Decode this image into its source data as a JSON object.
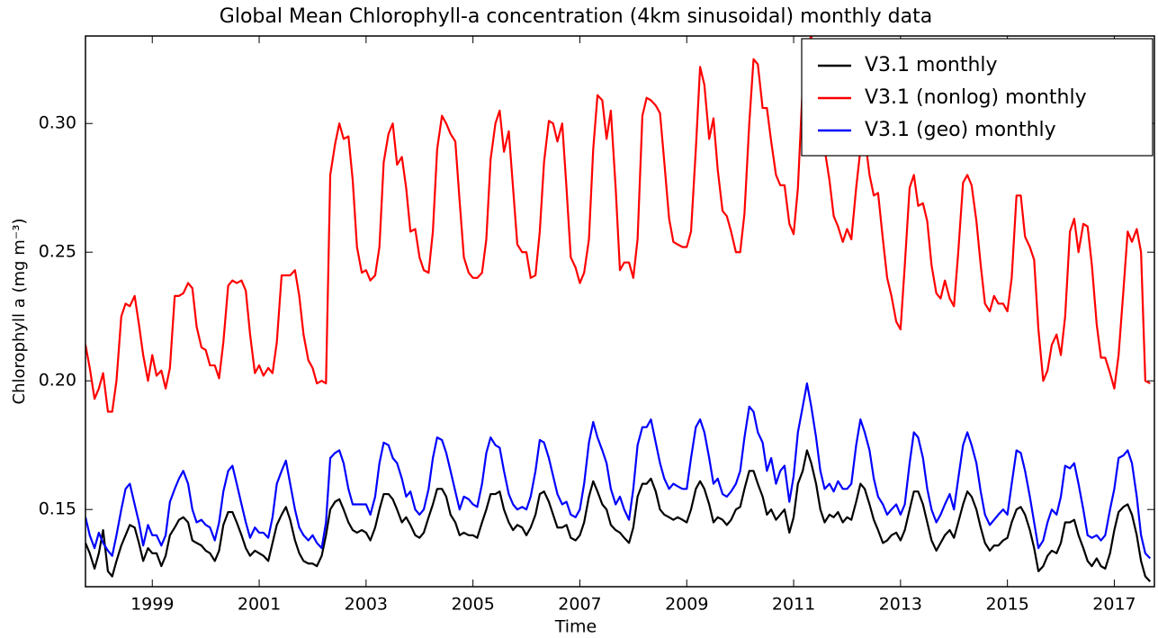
{
  "chart_data": {
    "type": "line",
    "title": "Global Mean Chlorophyll-a concentration (4km sinusoidal) monthly data",
    "xlabel": "Time",
    "ylabel": "Chlorophyll a (mg m⁻³)",
    "xlim": [
      1997.75,
      2017.75
    ],
    "ylim": [
      0.12,
      0.334
    ],
    "xticks": [
      1999,
      2001,
      2003,
      2005,
      2007,
      2009,
      2011,
      2013,
      2015,
      2017
    ],
    "yticks": [
      0.15,
      {
        "value": 0.2,
        "label": "0.20"
      },
      0.25,
      {
        "value": 0.3,
        "label": "0.30"
      }
    ],
    "legend": "upper right",
    "x": [
      1997.75,
      1997.83,
      1997.92,
      1998.0,
      1998.08,
      1998.17,
      1998.25,
      1998.33,
      1998.42,
      1998.5,
      1998.58,
      1998.67,
      1998.75,
      1998.83,
      1998.92,
      1999.0,
      1999.08,
      1999.17,
      1999.25,
      1999.33,
      1999.42,
      1999.5,
      1999.58,
      1999.67,
      1999.75,
      1999.83,
      1999.92,
      2000.0,
      2000.08,
      2000.17,
      2000.25,
      2000.33,
      2000.42,
      2000.5,
      2000.58,
      2000.67,
      2000.75,
      2000.83,
      2000.92,
      2001.0,
      2001.08,
      2001.17,
      2001.25,
      2001.33,
      2001.42,
      2001.5,
      2001.58,
      2001.67,
      2001.75,
      2001.83,
      2001.92,
      2002.0,
      2002.08,
      2002.17,
      2002.25,
      2002.33,
      2002.42,
      2002.5,
      2002.58,
      2002.67,
      2002.75,
      2002.83,
      2002.92,
      2003.0,
      2003.08,
      2003.17,
      2003.25,
      2003.33,
      2003.42,
      2003.5,
      2003.58,
      2003.67,
      2003.75,
      2003.83,
      2003.92,
      2004.0,
      2004.08,
      2004.17,
      2004.25,
      2004.33,
      2004.42,
      2004.5,
      2004.58,
      2004.67,
      2004.75,
      2004.83,
      2004.92,
      2005.0,
      2005.08,
      2005.17,
      2005.25,
      2005.33,
      2005.42,
      2005.5,
      2005.58,
      2005.67,
      2005.75,
      2005.83,
      2005.92,
      2006.0,
      2006.08,
      2006.17,
      2006.25,
      2006.33,
      2006.42,
      2006.5,
      2006.58,
      2006.67,
      2006.75,
      2006.83,
      2006.92,
      2007.0,
      2007.08,
      2007.17,
      2007.25,
      2007.33,
      2007.42,
      2007.5,
      2007.58,
      2007.67,
      2007.75,
      2007.83,
      2007.92,
      2008.0,
      2008.08,
      2008.17,
      2008.25,
      2008.33,
      2008.42,
      2008.5,
      2008.58,
      2008.67,
      2008.75,
      2008.83,
      2008.92,
      2009.0,
      2009.08,
      2009.17,
      2009.25,
      2009.33,
      2009.42,
      2009.5,
      2009.58,
      2009.67,
      2009.75,
      2009.83,
      2009.92,
      2010.0,
      2010.08,
      2010.17,
      2010.25,
      2010.33,
      2010.42,
      2010.5,
      2010.58,
      2010.67,
      2010.75,
      2010.83,
      2010.92,
      2011.0,
      2011.08,
      2011.17,
      2011.25,
      2011.33,
      2011.42,
      2011.5,
      2011.58,
      2011.67,
      2011.75,
      2011.83,
      2011.92,
      2012.0,
      2012.08,
      2012.17,
      2012.25,
      2012.33,
      2012.42,
      2012.5,
      2012.58,
      2012.67,
      2012.75,
      2012.83,
      2012.92,
      2013.0,
      2013.08,
      2013.17,
      2013.25,
      2013.33,
      2013.42,
      2013.5,
      2013.58,
      2013.67,
      2013.75,
      2013.83,
      2013.92,
      2014.0,
      2014.08,
      2014.17,
      2014.25,
      2014.33,
      2014.42,
      2014.5,
      2014.58,
      2014.67,
      2014.75,
      2014.83,
      2014.92,
      2015.0,
      2015.08,
      2015.17,
      2015.25,
      2015.33,
      2015.42,
      2015.5,
      2015.58,
      2015.67,
      2015.75,
      2015.83,
      2015.92,
      2016.0,
      2016.08,
      2016.17,
      2016.25,
      2016.33,
      2016.42,
      2016.5,
      2016.58,
      2016.67,
      2016.75,
      2016.83,
      2016.92,
      2017.0,
      2017.08,
      2017.17,
      2017.25,
      2017.33,
      2017.42,
      2017.5,
      2017.58,
      2017.67
    ],
    "series": [
      {
        "name": "V3.1 monthly",
        "color": "#000000",
        "values": [
          0.137,
          0.133,
          0.127,
          0.133,
          0.142,
          0.126,
          0.124,
          0.13,
          0.136,
          0.14,
          0.144,
          0.143,
          0.137,
          0.13,
          0.135,
          0.133,
          0.133,
          0.128,
          0.132,
          0.14,
          0.143,
          0.146,
          0.147,
          0.145,
          0.138,
          0.137,
          0.136,
          0.134,
          0.133,
          0.13,
          0.134,
          0.144,
          0.149,
          0.149,
          0.145,
          0.14,
          0.135,
          0.132,
          0.134,
          0.133,
          0.132,
          0.13,
          0.137,
          0.144,
          0.148,
          0.151,
          0.146,
          0.138,
          0.133,
          0.13,
          0.129,
          0.129,
          0.128,
          0.132,
          0.14,
          0.15,
          0.153,
          0.154,
          0.15,
          0.145,
          0.142,
          0.141,
          0.142,
          0.141,
          0.138,
          0.143,
          0.15,
          0.156,
          0.156,
          0.154,
          0.15,
          0.145,
          0.147,
          0.144,
          0.14,
          0.139,
          0.141,
          0.147,
          0.152,
          0.158,
          0.158,
          0.155,
          0.148,
          0.145,
          0.14,
          0.141,
          0.14,
          0.14,
          0.139,
          0.145,
          0.15,
          0.156,
          0.156,
          0.157,
          0.15,
          0.145,
          0.142,
          0.144,
          0.143,
          0.14,
          0.143,
          0.148,
          0.156,
          0.157,
          0.153,
          0.148,
          0.143,
          0.143,
          0.144,
          0.139,
          0.138,
          0.14,
          0.145,
          0.155,
          0.161,
          0.157,
          0.152,
          0.15,
          0.144,
          0.142,
          0.141,
          0.139,
          0.137,
          0.143,
          0.155,
          0.16,
          0.16,
          0.162,
          0.157,
          0.15,
          0.148,
          0.147,
          0.146,
          0.147,
          0.146,
          0.145,
          0.15,
          0.158,
          0.161,
          0.158,
          0.152,
          0.145,
          0.147,
          0.146,
          0.144,
          0.146,
          0.15,
          0.151,
          0.158,
          0.165,
          0.165,
          0.16,
          0.155,
          0.148,
          0.15,
          0.146,
          0.148,
          0.15,
          0.141,
          0.147,
          0.16,
          0.165,
          0.173,
          0.168,
          0.16,
          0.15,
          0.145,
          0.148,
          0.147,
          0.149,
          0.145,
          0.147,
          0.146,
          0.153,
          0.16,
          0.158,
          0.152,
          0.146,
          0.142,
          0.137,
          0.138,
          0.14,
          0.141,
          0.138,
          0.142,
          0.15,
          0.157,
          0.157,
          0.152,
          0.145,
          0.138,
          0.134,
          0.137,
          0.14,
          0.142,
          0.139,
          0.145,
          0.152,
          0.157,
          0.155,
          0.15,
          0.143,
          0.137,
          0.134,
          0.136,
          0.136,
          0.138,
          0.139,
          0.145,
          0.15,
          0.151,
          0.148,
          0.142,
          0.135,
          0.126,
          0.128,
          0.132,
          0.134,
          0.133,
          0.137,
          0.145,
          0.145,
          0.146,
          0.14,
          0.135,
          0.13,
          0.128,
          0.131,
          0.128,
          0.127,
          0.133,
          0.142,
          0.149,
          0.151,
          0.152,
          0.148,
          0.14,
          0.13,
          0.124,
          0.122
        ]
      },
      {
        "name": "V3.1 (nonlog) monthly",
        "color": "#ff0000",
        "values": [
          0.214,
          0.205,
          0.193,
          0.197,
          0.203,
          0.188,
          0.188,
          0.2,
          0.225,
          0.23,
          0.229,
          0.233,
          0.222,
          0.21,
          0.2,
          0.21,
          0.202,
          0.204,
          0.197,
          0.205,
          0.233,
          0.233,
          0.234,
          0.238,
          0.236,
          0.221,
          0.213,
          0.212,
          0.206,
          0.206,
          0.201,
          0.215,
          0.237,
          0.239,
          0.238,
          0.239,
          0.235,
          0.218,
          0.203,
          0.206,
          0.202,
          0.205,
          0.203,
          0.215,
          0.241,
          0.241,
          0.241,
          0.243,
          0.233,
          0.218,
          0.208,
          0.205,
          0.199,
          0.2,
          0.199,
          0.28,
          0.292,
          0.3,
          0.294,
          0.295,
          0.278,
          0.252,
          0.242,
          0.243,
          0.239,
          0.241,
          0.252,
          0.285,
          0.296,
          0.3,
          0.284,
          0.287,
          0.275,
          0.258,
          0.259,
          0.248,
          0.243,
          0.242,
          0.258,
          0.29,
          0.303,
          0.3,
          0.296,
          0.293,
          0.27,
          0.248,
          0.242,
          0.24,
          0.24,
          0.242,
          0.255,
          0.286,
          0.3,
          0.305,
          0.289,
          0.297,
          0.275,
          0.253,
          0.25,
          0.25,
          0.24,
          0.241,
          0.258,
          0.285,
          0.301,
          0.3,
          0.293,
          0.3,
          0.275,
          0.248,
          0.244,
          0.238,
          0.242,
          0.255,
          0.29,
          0.311,
          0.309,
          0.294,
          0.305,
          0.275,
          0.243,
          0.246,
          0.246,
          0.24,
          0.255,
          0.303,
          0.31,
          0.309,
          0.307,
          0.304,
          0.285,
          0.263,
          0.254,
          0.253,
          0.252,
          0.252,
          0.258,
          0.29,
          0.322,
          0.315,
          0.294,
          0.302,
          0.282,
          0.266,
          0.264,
          0.258,
          0.25,
          0.25,
          0.265,
          0.3,
          0.325,
          0.323,
          0.306,
          0.306,
          0.293,
          0.28,
          0.276,
          0.276,
          0.261,
          0.257,
          0.275,
          0.315,
          0.33,
          0.334,
          0.31,
          0.3,
          0.29,
          0.278,
          0.264,
          0.26,
          0.254,
          0.259,
          0.255,
          0.275,
          0.29,
          0.295,
          0.28,
          0.272,
          0.273,
          0.255,
          0.24,
          0.233,
          0.223,
          0.22,
          0.245,
          0.275,
          0.28,
          0.268,
          0.269,
          0.262,
          0.245,
          0.234,
          0.232,
          0.239,
          0.232,
          0.229,
          0.25,
          0.277,
          0.28,
          0.276,
          0.262,
          0.245,
          0.23,
          0.227,
          0.233,
          0.23,
          0.23,
          0.227,
          0.24,
          0.272,
          0.272,
          0.256,
          0.252,
          0.247,
          0.22,
          0.2,
          0.204,
          0.214,
          0.218,
          0.21,
          0.225,
          0.258,
          0.263,
          0.25,
          0.261,
          0.26,
          0.245,
          0.222,
          0.209,
          0.209,
          0.203,
          0.197,
          0.21,
          0.235,
          0.258,
          0.254,
          0.259,
          0.25,
          0.2,
          0.199
        ]
      },
      {
        "name": "V3.1 (geo) monthly",
        "color": "#0000ff",
        "values": [
          0.147,
          0.14,
          0.135,
          0.141,
          0.137,
          0.134,
          0.132,
          0.14,
          0.15,
          0.158,
          0.16,
          0.152,
          0.145,
          0.136,
          0.144,
          0.14,
          0.14,
          0.136,
          0.14,
          0.153,
          0.158,
          0.162,
          0.165,
          0.16,
          0.15,
          0.145,
          0.146,
          0.144,
          0.143,
          0.138,
          0.145,
          0.157,
          0.165,
          0.167,
          0.16,
          0.152,
          0.145,
          0.139,
          0.143,
          0.141,
          0.141,
          0.139,
          0.147,
          0.16,
          0.165,
          0.169,
          0.16,
          0.15,
          0.143,
          0.14,
          0.138,
          0.14,
          0.137,
          0.135,
          0.145,
          0.17,
          0.172,
          0.173,
          0.168,
          0.158,
          0.152,
          0.152,
          0.152,
          0.152,
          0.148,
          0.155,
          0.168,
          0.176,
          0.175,
          0.17,
          0.168,
          0.162,
          0.155,
          0.157,
          0.15,
          0.148,
          0.15,
          0.158,
          0.17,
          0.178,
          0.177,
          0.172,
          0.165,
          0.157,
          0.15,
          0.155,
          0.154,
          0.152,
          0.151,
          0.16,
          0.172,
          0.178,
          0.175,
          0.174,
          0.165,
          0.156,
          0.152,
          0.15,
          0.151,
          0.15,
          0.155,
          0.165,
          0.177,
          0.176,
          0.17,
          0.163,
          0.156,
          0.152,
          0.153,
          0.148,
          0.147,
          0.15,
          0.16,
          0.176,
          0.184,
          0.178,
          0.173,
          0.168,
          0.158,
          0.152,
          0.155,
          0.15,
          0.146,
          0.158,
          0.175,
          0.182,
          0.182,
          0.185,
          0.176,
          0.168,
          0.162,
          0.158,
          0.16,
          0.159,
          0.158,
          0.158,
          0.17,
          0.182,
          0.185,
          0.18,
          0.17,
          0.16,
          0.162,
          0.156,
          0.155,
          0.157,
          0.16,
          0.165,
          0.178,
          0.19,
          0.188,
          0.18,
          0.176,
          0.165,
          0.17,
          0.16,
          0.165,
          0.167,
          0.153,
          0.163,
          0.18,
          0.19,
          0.199,
          0.19,
          0.178,
          0.165,
          0.158,
          0.16,
          0.157,
          0.161,
          0.158,
          0.158,
          0.16,
          0.175,
          0.185,
          0.18,
          0.173,
          0.162,
          0.155,
          0.152,
          0.148,
          0.15,
          0.152,
          0.148,
          0.152,
          0.168,
          0.18,
          0.178,
          0.17,
          0.158,
          0.15,
          0.145,
          0.148,
          0.152,
          0.156,
          0.15,
          0.162,
          0.175,
          0.18,
          0.175,
          0.168,
          0.157,
          0.148,
          0.144,
          0.146,
          0.148,
          0.15,
          0.148,
          0.16,
          0.173,
          0.172,
          0.165,
          0.155,
          0.145,
          0.135,
          0.138,
          0.145,
          0.15,
          0.148,
          0.155,
          0.167,
          0.166,
          0.168,
          0.16,
          0.15,
          0.14,
          0.139,
          0.14,
          0.138,
          0.14,
          0.15,
          0.158,
          0.17,
          0.171,
          0.173,
          0.168,
          0.155,
          0.14,
          0.133,
          0.131
        ]
      }
    ]
  }
}
